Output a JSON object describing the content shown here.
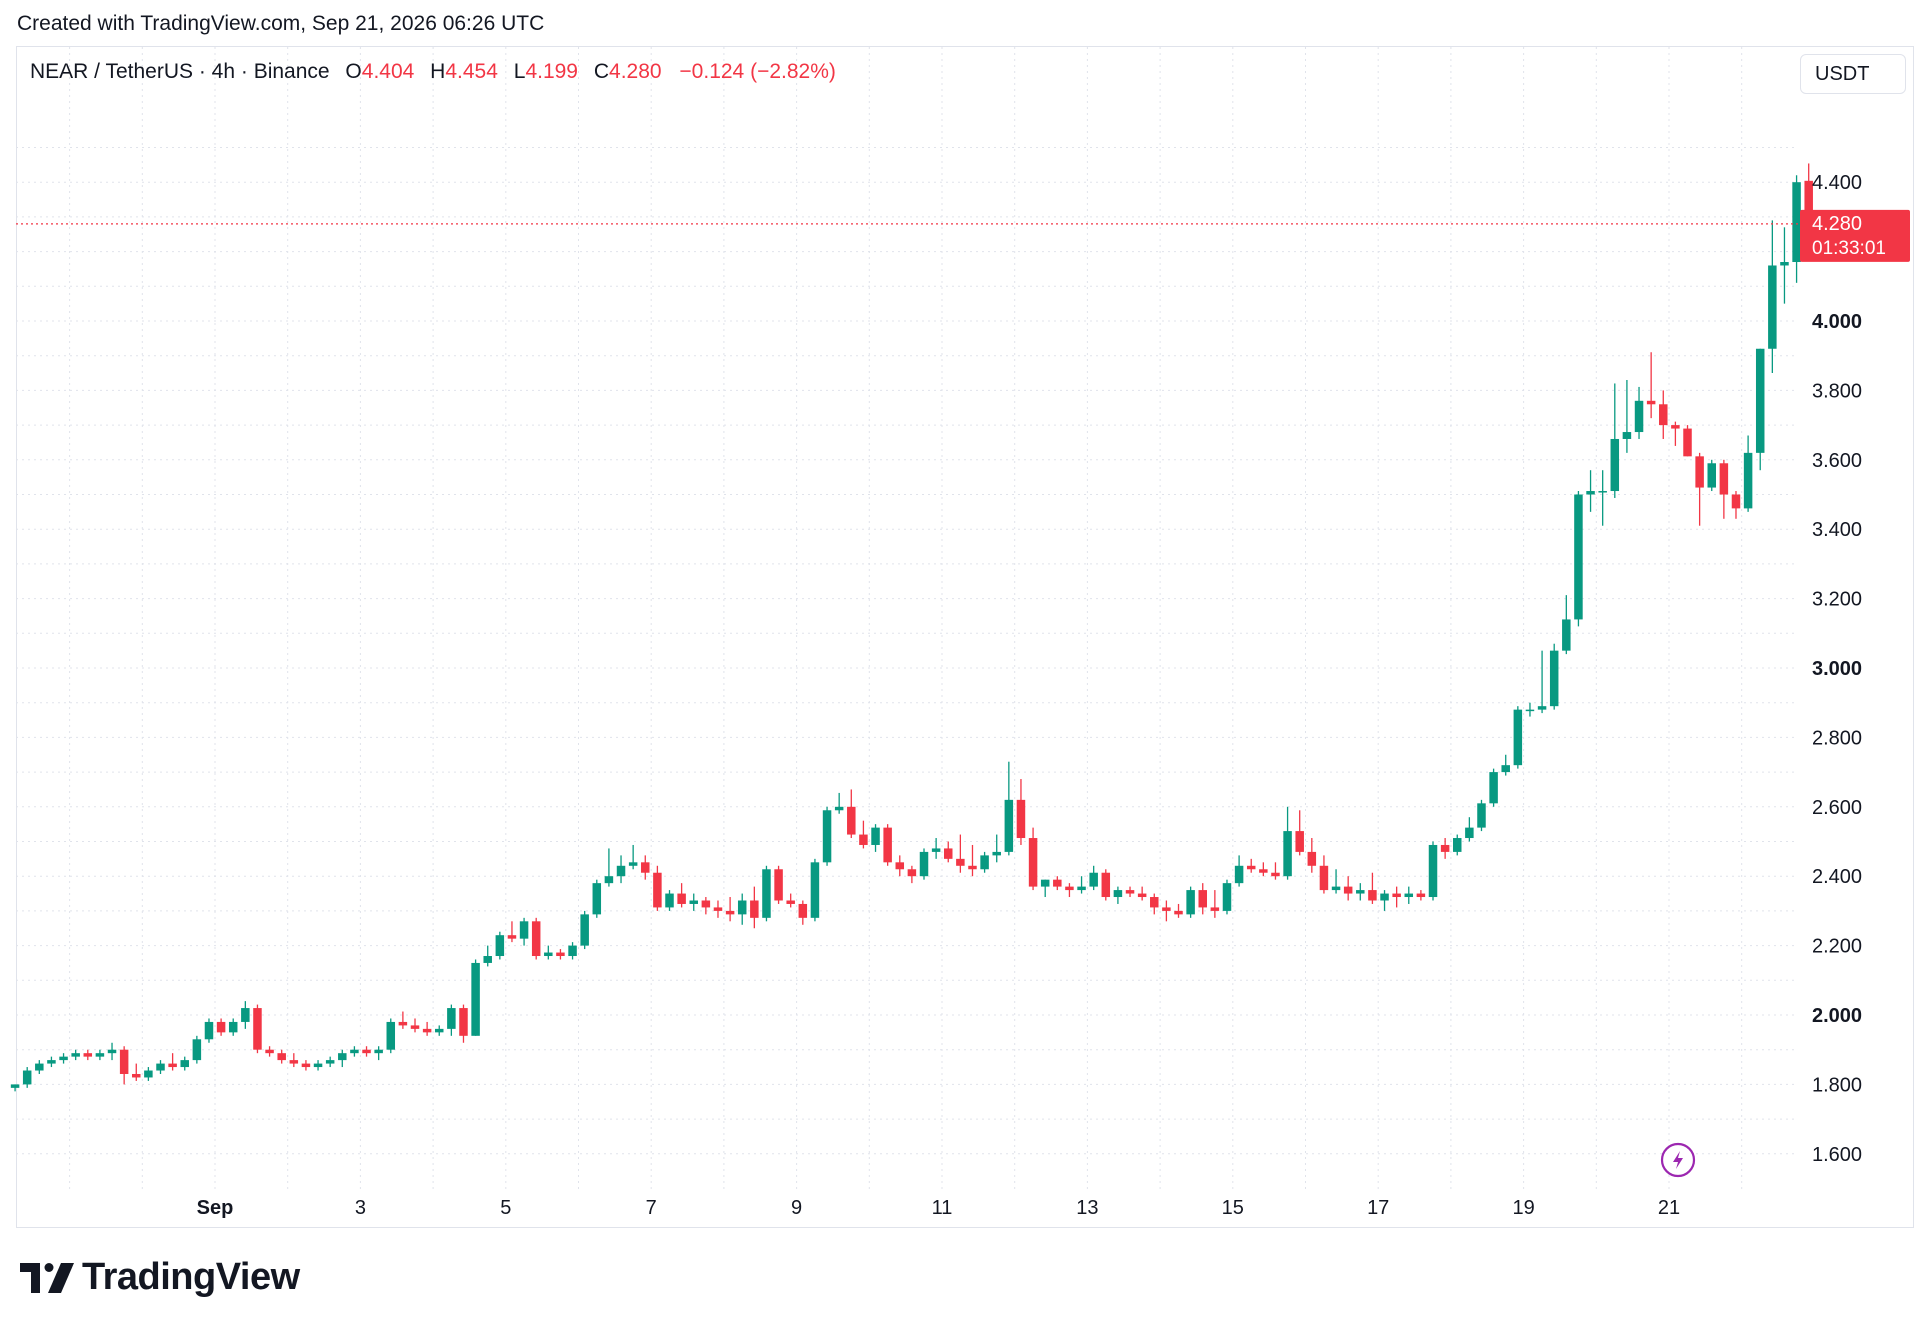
{
  "caption": "Created with TradingView.com, Sep 21, 2026 06:26 UTC",
  "legend": {
    "symbol": "NEAR / TetherUS · 4h · Binance",
    "open_label": "O",
    "open": "4.404",
    "high_label": "H",
    "high": "4.454",
    "low_label": "L",
    "low": "4.199",
    "close_label": "C",
    "close": "4.280",
    "change": "−0.124 (−2.82%)"
  },
  "currency_button": "USDT",
  "price_tag": {
    "price": "4.280",
    "countdown": "01:33:01"
  },
  "brand": {
    "name": "TradingView",
    "icon": "tradingview-logo-icon"
  },
  "corner_icon": "lightning-icon",
  "colors": {
    "up": "#089981",
    "down": "#f23645",
    "grid": "#e0e3eb",
    "text": "#131722"
  },
  "chart_data": {
    "type": "candlestick",
    "interval": "4h",
    "ylim": [
      1.5,
      4.6
    ],
    "y_ticks": [
      "1.600",
      "1.800",
      "2.000",
      "2.200",
      "2.400",
      "2.600",
      "2.800",
      "3.000",
      "3.200",
      "3.400",
      "3.600",
      "3.800",
      "4.000",
      "4.400"
    ],
    "y_ticks_bold": [
      "2.000",
      "3.000",
      "4.000"
    ],
    "x_ticks": [
      {
        "label": "Sep",
        "day": 1,
        "bold": true
      },
      {
        "label": "3",
        "day": 3
      },
      {
        "label": "5",
        "day": 5
      },
      {
        "label": "7",
        "day": 7
      },
      {
        "label": "9",
        "day": 9
      },
      {
        "label": "11",
        "day": 11
      },
      {
        "label": "13",
        "day": 13
      },
      {
        "label": "15",
        "day": 15
      },
      {
        "label": "17",
        "day": 17
      },
      {
        "label": "19",
        "day": 19
      },
      {
        "label": "21",
        "day": 21
      }
    ],
    "first_candle_day": -1.75,
    "candle_interval_days": 0.1667,
    "last_price": 4.28,
    "ohlc": [
      [
        1.79,
        1.8,
        1.78,
        1.8
      ],
      [
        1.8,
        1.85,
        1.79,
        1.84
      ],
      [
        1.84,
        1.87,
        1.83,
        1.86
      ],
      [
        1.86,
        1.88,
        1.85,
        1.87
      ],
      [
        1.87,
        1.89,
        1.86,
        1.88
      ],
      [
        1.88,
        1.9,
        1.87,
        1.89
      ],
      [
        1.89,
        1.9,
        1.87,
        1.88
      ],
      [
        1.88,
        1.9,
        1.87,
        1.89
      ],
      [
        1.89,
        1.92,
        1.87,
        1.9
      ],
      [
        1.9,
        1.91,
        1.8,
        1.83
      ],
      [
        1.83,
        1.86,
        1.81,
        1.82
      ],
      [
        1.82,
        1.85,
        1.81,
        1.84
      ],
      [
        1.84,
        1.87,
        1.83,
        1.86
      ],
      [
        1.86,
        1.89,
        1.84,
        1.85
      ],
      [
        1.85,
        1.88,
        1.84,
        1.87
      ],
      [
        1.87,
        1.94,
        1.86,
        1.93
      ],
      [
        1.93,
        1.99,
        1.92,
        1.98
      ],
      [
        1.98,
        1.99,
        1.94,
        1.95
      ],
      [
        1.95,
        1.99,
        1.94,
        1.98
      ],
      [
        1.98,
        2.04,
        1.96,
        2.02
      ],
      [
        2.02,
        2.03,
        1.89,
        1.9
      ],
      [
        1.9,
        1.91,
        1.88,
        1.89
      ],
      [
        1.89,
        1.9,
        1.86,
        1.87
      ],
      [
        1.87,
        1.89,
        1.85,
        1.86
      ],
      [
        1.86,
        1.87,
        1.84,
        1.85
      ],
      [
        1.85,
        1.87,
        1.84,
        1.86
      ],
      [
        1.86,
        1.88,
        1.85,
        1.87
      ],
      [
        1.87,
        1.9,
        1.85,
        1.89
      ],
      [
        1.89,
        1.91,
        1.88,
        1.9
      ],
      [
        1.9,
        1.91,
        1.88,
        1.89
      ],
      [
        1.89,
        1.91,
        1.87,
        1.9
      ],
      [
        1.9,
        1.99,
        1.89,
        1.98
      ],
      [
        1.98,
        2.01,
        1.96,
        1.97
      ],
      [
        1.97,
        1.99,
        1.95,
        1.96
      ],
      [
        1.96,
        1.98,
        1.94,
        1.95
      ],
      [
        1.95,
        1.97,
        1.94,
        1.96
      ],
      [
        1.96,
        2.03,
        1.94,
        2.02
      ],
      [
        2.02,
        2.03,
        1.92,
        1.94
      ],
      [
        1.94,
        2.16,
        1.94,
        2.15
      ],
      [
        2.15,
        2.2,
        2.14,
        2.17
      ],
      [
        2.17,
        2.24,
        2.16,
        2.23
      ],
      [
        2.23,
        2.27,
        2.21,
        2.22
      ],
      [
        2.22,
        2.28,
        2.2,
        2.27
      ],
      [
        2.27,
        2.28,
        2.16,
        2.17
      ],
      [
        2.17,
        2.2,
        2.16,
        2.18
      ],
      [
        2.18,
        2.19,
        2.16,
        2.17
      ],
      [
        2.17,
        2.21,
        2.16,
        2.2
      ],
      [
        2.2,
        2.3,
        2.19,
        2.29
      ],
      [
        2.29,
        2.39,
        2.28,
        2.38
      ],
      [
        2.38,
        2.48,
        2.37,
        2.4
      ],
      [
        2.4,
        2.46,
        2.38,
        2.43
      ],
      [
        2.43,
        2.49,
        2.42,
        2.44
      ],
      [
        2.44,
        2.46,
        2.39,
        2.41
      ],
      [
        2.41,
        2.43,
        2.3,
        2.31
      ],
      [
        2.31,
        2.36,
        2.3,
        2.35
      ],
      [
        2.35,
        2.38,
        2.31,
        2.32
      ],
      [
        2.32,
        2.35,
        2.3,
        2.33
      ],
      [
        2.33,
        2.34,
        2.29,
        2.31
      ],
      [
        2.31,
        2.33,
        2.28,
        2.3
      ],
      [
        2.3,
        2.34,
        2.27,
        2.29
      ],
      [
        2.29,
        2.35,
        2.26,
        2.33
      ],
      [
        2.33,
        2.37,
        2.25,
        2.28
      ],
      [
        2.28,
        2.43,
        2.27,
        2.42
      ],
      [
        2.42,
        2.43,
        2.32,
        2.33
      ],
      [
        2.33,
        2.35,
        2.31,
        2.32
      ],
      [
        2.32,
        2.33,
        2.26,
        2.28
      ],
      [
        2.28,
        2.45,
        2.27,
        2.44
      ],
      [
        2.44,
        2.6,
        2.43,
        2.59
      ],
      [
        2.59,
        2.64,
        2.58,
        2.6
      ],
      [
        2.6,
        2.65,
        2.51,
        2.52
      ],
      [
        2.52,
        2.56,
        2.48,
        2.49
      ],
      [
        2.49,
        2.55,
        2.47,
        2.54
      ],
      [
        2.54,
        2.55,
        2.43,
        2.44
      ],
      [
        2.44,
        2.46,
        2.4,
        2.42
      ],
      [
        2.42,
        2.43,
        2.38,
        2.4
      ],
      [
        2.4,
        2.48,
        2.39,
        2.47
      ],
      [
        2.47,
        2.51,
        2.45,
        2.48
      ],
      [
        2.48,
        2.5,
        2.44,
        2.45
      ],
      [
        2.45,
        2.52,
        2.41,
        2.43
      ],
      [
        2.43,
        2.49,
        2.4,
        2.42
      ],
      [
        2.42,
        2.47,
        2.41,
        2.46
      ],
      [
        2.46,
        2.52,
        2.44,
        2.47
      ],
      [
        2.47,
        2.73,
        2.46,
        2.62
      ],
      [
        2.62,
        2.68,
        2.49,
        2.51
      ],
      [
        2.51,
        2.54,
        2.36,
        2.37
      ],
      [
        2.37,
        2.39,
        2.34,
        2.39
      ],
      [
        2.39,
        2.4,
        2.36,
        2.37
      ],
      [
        2.37,
        2.38,
        2.34,
        2.36
      ],
      [
        2.36,
        2.4,
        2.35,
        2.37
      ],
      [
        2.37,
        2.43,
        2.36,
        2.41
      ],
      [
        2.41,
        2.42,
        2.33,
        2.34
      ],
      [
        2.34,
        2.37,
        2.32,
        2.36
      ],
      [
        2.36,
        2.37,
        2.34,
        2.35
      ],
      [
        2.35,
        2.37,
        2.33,
        2.34
      ],
      [
        2.34,
        2.35,
        2.29,
        2.31
      ],
      [
        2.31,
        2.33,
        2.27,
        2.3
      ],
      [
        2.3,
        2.32,
        2.28,
        2.29
      ],
      [
        2.29,
        2.37,
        2.28,
        2.36
      ],
      [
        2.36,
        2.38,
        2.29,
        2.31
      ],
      [
        2.31,
        2.36,
        2.28,
        2.3
      ],
      [
        2.3,
        2.39,
        2.29,
        2.38
      ],
      [
        2.38,
        2.46,
        2.37,
        2.43
      ],
      [
        2.43,
        2.45,
        2.41,
        2.42
      ],
      [
        2.42,
        2.44,
        2.4,
        2.41
      ],
      [
        2.41,
        2.44,
        2.39,
        2.4
      ],
      [
        2.4,
        2.6,
        2.39,
        2.53
      ],
      [
        2.53,
        2.59,
        2.46,
        2.47
      ],
      [
        2.47,
        2.51,
        2.41,
        2.43
      ],
      [
        2.43,
        2.46,
        2.35,
        2.36
      ],
      [
        2.36,
        2.42,
        2.35,
        2.37
      ],
      [
        2.37,
        2.4,
        2.33,
        2.35
      ],
      [
        2.35,
        2.38,
        2.33,
        2.36
      ],
      [
        2.36,
        2.41,
        2.32,
        2.33
      ],
      [
        2.33,
        2.36,
        2.3,
        2.35
      ],
      [
        2.35,
        2.37,
        2.31,
        2.34
      ],
      [
        2.34,
        2.37,
        2.32,
        2.35
      ],
      [
        2.35,
        2.36,
        2.33,
        2.34
      ],
      [
        2.34,
        2.5,
        2.33,
        2.49
      ],
      [
        2.49,
        2.51,
        2.45,
        2.47
      ],
      [
        2.47,
        2.52,
        2.46,
        2.51
      ],
      [
        2.51,
        2.57,
        2.5,
        2.54
      ],
      [
        2.54,
        2.62,
        2.53,
        2.61
      ],
      [
        2.61,
        2.71,
        2.6,
        2.7
      ],
      [
        2.7,
        2.75,
        2.69,
        2.72
      ],
      [
        2.72,
        2.89,
        2.71,
        2.88
      ],
      [
        2.88,
        2.9,
        2.86,
        2.88
      ],
      [
        2.88,
        3.05,
        2.87,
        2.89
      ],
      [
        2.89,
        3.07,
        2.88,
        3.05
      ],
      [
        3.05,
        3.21,
        3.04,
        3.14
      ],
      [
        3.14,
        3.51,
        3.12,
        3.5
      ],
      [
        3.5,
        3.57,
        3.45,
        3.51
      ],
      [
        3.51,
        3.57,
        3.41,
        3.51
      ],
      [
        3.51,
        3.82,
        3.49,
        3.66
      ],
      [
        3.66,
        3.83,
        3.62,
        3.68
      ],
      [
        3.68,
        3.81,
        3.66,
        3.77
      ],
      [
        3.77,
        3.91,
        3.72,
        3.76
      ],
      [
        3.76,
        3.8,
        3.66,
        3.7
      ],
      [
        3.7,
        3.71,
        3.64,
        3.69
      ],
      [
        3.69,
        3.7,
        3.61,
        3.61
      ],
      [
        3.61,
        3.62,
        3.41,
        3.52
      ],
      [
        3.52,
        3.6,
        3.51,
        3.59
      ],
      [
        3.59,
        3.6,
        3.43,
        3.5
      ],
      [
        3.5,
        3.51,
        3.43,
        3.46
      ],
      [
        3.46,
        3.67,
        3.45,
        3.62
      ],
      [
        3.62,
        3.92,
        3.57,
        3.92
      ],
      [
        3.92,
        4.29,
        3.85,
        4.16
      ],
      [
        4.16,
        4.27,
        4.05,
        4.17
      ],
      [
        4.17,
        4.42,
        4.11,
        4.4
      ],
      [
        4.404,
        4.454,
        4.199,
        4.28
      ]
    ]
  }
}
